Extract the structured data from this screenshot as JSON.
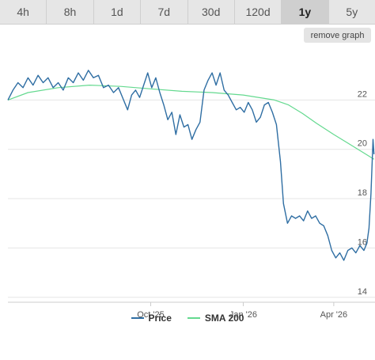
{
  "tabs": [
    {
      "label": "4h",
      "active": false
    },
    {
      "label": "8h",
      "active": false
    },
    {
      "label": "1d",
      "active": false
    },
    {
      "label": "7d",
      "active": false
    },
    {
      "label": "30d",
      "active": false
    },
    {
      "label": "120d",
      "active": false
    },
    {
      "label": "1y",
      "active": true
    },
    {
      "label": "5y",
      "active": false
    }
  ],
  "remove_graph_label": "remove graph",
  "colors": {
    "price": "#2f6ea3",
    "sma": "#64d98f",
    "grid": "#e6e6e6",
    "axis": "#cccccc",
    "text": "#555555"
  },
  "chart_data": {
    "type": "line",
    "x_ticks": [
      "Oct '25",
      "Jan '26",
      "Apr '26"
    ],
    "y_ticks": [
      14,
      16,
      18,
      20,
      22
    ],
    "ylim": [
      13.8,
      24
    ],
    "xlim": [
      "2025-05-12",
      "2026-05-12"
    ],
    "grid": true,
    "legend_position": "bottom",
    "series": [
      {
        "name": "Price",
        "points": [
          [
            "2025-05-12",
            22.0
          ],
          [
            "2025-05-17",
            22.4
          ],
          [
            "2025-05-22",
            22.7
          ],
          [
            "2025-05-27",
            22.5
          ],
          [
            "2025-06-01",
            22.9
          ],
          [
            "2025-06-06",
            22.6
          ],
          [
            "2025-06-11",
            23.0
          ],
          [
            "2025-06-16",
            22.7
          ],
          [
            "2025-06-21",
            22.9
          ],
          [
            "2025-06-26",
            22.5
          ],
          [
            "2025-07-01",
            22.7
          ],
          [
            "2025-07-06",
            22.4
          ],
          [
            "2025-07-11",
            22.9
          ],
          [
            "2025-07-16",
            22.7
          ],
          [
            "2025-07-21",
            23.1
          ],
          [
            "2025-07-26",
            22.8
          ],
          [
            "2025-07-31",
            23.2
          ],
          [
            "2025-08-05",
            22.9
          ],
          [
            "2025-08-10",
            23.0
          ],
          [
            "2025-08-15",
            22.5
          ],
          [
            "2025-08-20",
            22.6
          ],
          [
            "2025-08-25",
            22.3
          ],
          [
            "2025-08-30",
            22.5
          ],
          [
            "2025-09-04",
            22.0
          ],
          [
            "2025-09-08",
            21.6
          ],
          [
            "2025-09-12",
            22.2
          ],
          [
            "2025-09-16",
            22.4
          ],
          [
            "2025-09-20",
            22.1
          ],
          [
            "2025-09-24",
            22.6
          ],
          [
            "2025-09-28",
            23.1
          ],
          [
            "2025-10-02",
            22.5
          ],
          [
            "2025-10-06",
            22.9
          ],
          [
            "2025-10-10",
            22.3
          ],
          [
            "2025-10-14",
            21.8
          ],
          [
            "2025-10-18",
            21.2
          ],
          [
            "2025-10-22",
            21.5
          ],
          [
            "2025-10-26",
            20.6
          ],
          [
            "2025-10-30",
            21.4
          ],
          [
            "2025-11-03",
            20.9
          ],
          [
            "2025-11-07",
            21.0
          ],
          [
            "2025-11-11",
            20.4
          ],
          [
            "2025-11-15",
            20.8
          ],
          [
            "2025-11-19",
            21.1
          ],
          [
            "2025-11-23",
            22.4
          ],
          [
            "2025-11-27",
            22.8
          ],
          [
            "2025-12-01",
            23.1
          ],
          [
            "2025-12-05",
            22.6
          ],
          [
            "2025-12-09",
            23.1
          ],
          [
            "2025-12-13",
            22.4
          ],
          [
            "2025-12-17",
            22.2
          ],
          [
            "2025-12-21",
            21.9
          ],
          [
            "2025-12-25",
            21.6
          ],
          [
            "2025-12-29",
            21.7
          ],
          [
            "2026-01-02",
            21.5
          ],
          [
            "2026-01-06",
            21.9
          ],
          [
            "2026-01-10",
            21.6
          ],
          [
            "2026-01-14",
            21.1
          ],
          [
            "2026-01-18",
            21.3
          ],
          [
            "2026-01-22",
            21.8
          ],
          [
            "2026-01-26",
            21.9
          ],
          [
            "2026-01-30",
            21.5
          ],
          [
            "2026-02-03",
            21.0
          ],
          [
            "2026-02-07",
            19.5
          ],
          [
            "2026-02-10",
            17.8
          ],
          [
            "2026-02-14",
            17.0
          ],
          [
            "2026-02-18",
            17.3
          ],
          [
            "2026-02-22",
            17.2
          ],
          [
            "2026-02-26",
            17.3
          ],
          [
            "2026-03-02",
            17.1
          ],
          [
            "2026-03-06",
            17.5
          ],
          [
            "2026-03-10",
            17.2
          ],
          [
            "2026-03-14",
            17.3
          ],
          [
            "2026-03-18",
            17.0
          ],
          [
            "2026-03-22",
            16.9
          ],
          [
            "2026-03-26",
            16.5
          ],
          [
            "2026-03-30",
            15.9
          ],
          [
            "2026-04-03",
            15.6
          ],
          [
            "2026-04-07",
            15.8
          ],
          [
            "2026-04-11",
            15.5
          ],
          [
            "2026-04-15",
            15.9
          ],
          [
            "2026-04-19",
            16.0
          ],
          [
            "2026-04-23",
            15.8
          ],
          [
            "2026-04-27",
            16.1
          ],
          [
            "2026-05-01",
            15.9
          ],
          [
            "2026-05-04",
            16.2
          ],
          [
            "2026-05-06",
            16.8
          ],
          [
            "2026-05-08",
            18.2
          ],
          [
            "2026-05-10",
            20.4
          ],
          [
            "2026-05-11",
            19.8
          ]
        ]
      },
      {
        "name": "SMA 200",
        "points": [
          [
            "2025-05-12",
            22.0
          ],
          [
            "2025-06-01",
            22.3
          ],
          [
            "2025-07-01",
            22.5
          ],
          [
            "2025-08-01",
            22.6
          ],
          [
            "2025-09-01",
            22.55
          ],
          [
            "2025-10-01",
            22.45
          ],
          [
            "2025-11-01",
            22.35
          ],
          [
            "2025-12-01",
            22.3
          ],
          [
            "2026-01-01",
            22.2
          ],
          [
            "2026-02-01",
            22.0
          ],
          [
            "2026-02-15",
            21.8
          ],
          [
            "2026-03-01",
            21.45
          ],
          [
            "2026-03-15",
            21.05
          ],
          [
            "2026-04-01",
            20.6
          ],
          [
            "2026-04-15",
            20.25
          ],
          [
            "2026-05-01",
            19.85
          ],
          [
            "2026-05-11",
            19.6
          ]
        ]
      }
    ]
  }
}
